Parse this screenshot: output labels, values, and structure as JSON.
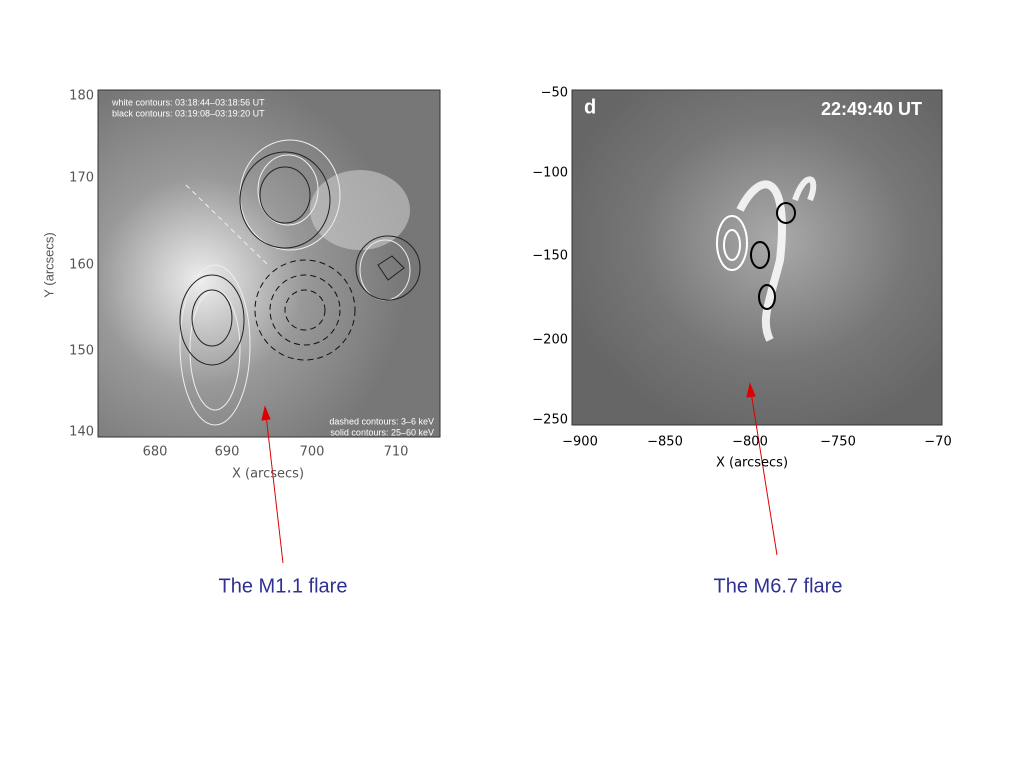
{
  "panels": [
    {
      "y_label": "Y (arcsecs)",
      "x_label": "X (arcsecs)",
      "yticks": [
        "180",
        "170",
        "160",
        "150",
        "140"
      ],
      "xticks": [
        "680",
        "690",
        "700",
        "710"
      ],
      "annotations": [
        "white  contours: 03:18:44–03:18:56 UT",
        "black contours:  03:19:08–03:19:20 UT",
        "dashed contours:   3–6  keV",
        "solid  contours: 25–60 keV"
      ],
      "caption": "The M1.1 flare"
    },
    {
      "x_label": "X (arcsecs)",
      "yticks": [
        "−50",
        "−100",
        "−150",
        "−200",
        "−250"
      ],
      "xticks": [
        "−900",
        "−850",
        "−800",
        "−750",
        "−70"
      ],
      "annotations": [
        "d",
        "22:49:40 UT"
      ],
      "caption": "The M6.7 flare"
    }
  ]
}
